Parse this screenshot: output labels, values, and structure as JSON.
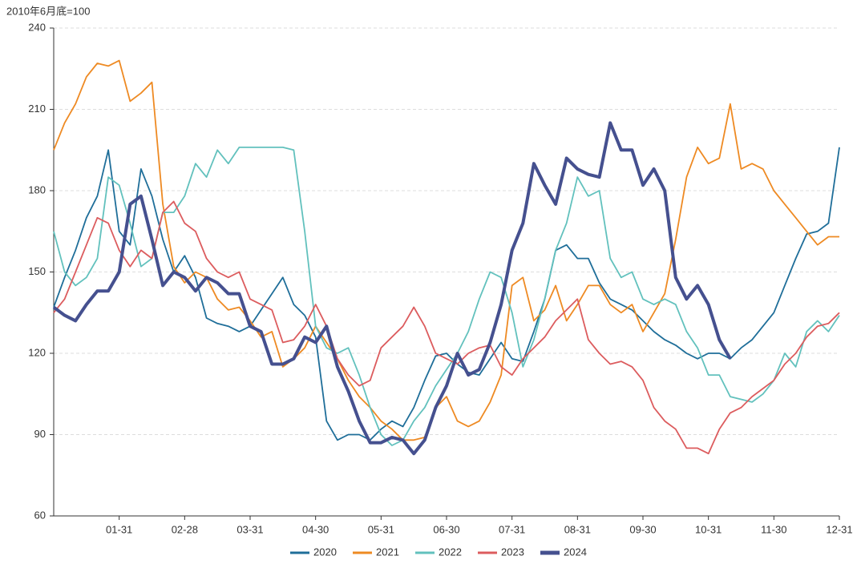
{
  "chart_data": {
    "type": "line",
    "y_label": "2010年6月底=100",
    "categories": [
      null,
      null,
      null,
      null,
      null,
      null,
      "01-31",
      null,
      null,
      null,
      null,
      null,
      "02-28",
      null,
      null,
      null,
      null,
      null,
      "03-31",
      null,
      null,
      null,
      null,
      null,
      "04-30",
      null,
      null,
      null,
      null,
      null,
      "05-31",
      null,
      null,
      null,
      null,
      null,
      "06-30",
      null,
      null,
      null,
      null,
      null,
      "07-31",
      null,
      null,
      null,
      null,
      null,
      "08-31",
      null,
      null,
      null,
      null,
      null,
      "09-30",
      null,
      null,
      null,
      null,
      null,
      "10-31",
      null,
      null,
      null,
      null,
      null,
      "11-30",
      null,
      null,
      null,
      null,
      null,
      "12-31"
    ],
    "ylim": [
      60,
      240
    ],
    "yticks": [
      60,
      90,
      120,
      150,
      180,
      210,
      240
    ],
    "grid": true,
    "legend": "bottom",
    "series": [
      {
        "name": "2020",
        "color": "#1f6e99",
        "values": [
          137,
          148,
          158,
          170,
          178,
          195,
          165,
          160,
          188,
          178,
          162,
          150,
          156,
          148,
          133,
          131,
          130,
          128,
          130,
          136,
          142,
          148,
          138,
          134,
          126,
          95,
          88,
          90,
          90,
          88,
          92,
          95,
          93,
          100,
          110,
          119,
          120,
          116,
          113,
          112,
          118,
          124,
          118,
          117,
          128,
          140,
          158,
          160,
          155,
          155,
          146,
          140,
          138,
          136,
          132,
          128,
          125,
          123,
          120,
          118,
          120,
          120,
          118,
          122,
          125,
          130,
          135,
          145,
          155,
          164,
          165,
          168,
          196
        ]
      },
      {
        "name": "2021",
        "color": "#ee8a23",
        "values": [
          195,
          205,
          212,
          222,
          227,
          226,
          228,
          213,
          216,
          220,
          175,
          152,
          146,
          150,
          148,
          140,
          136,
          137,
          132,
          126,
          128,
          115,
          118,
          122,
          130,
          124,
          118,
          110,
          104,
          100,
          95,
          92,
          88,
          88,
          89,
          100,
          104,
          95,
          93,
          95,
          102,
          112,
          145,
          148,
          132,
          136,
          145,
          132,
          138,
          145,
          145,
          138,
          135,
          138,
          128,
          135,
          142,
          162,
          185,
          196,
          190,
          192,
          212,
          188,
          190,
          188,
          180,
          175,
          170,
          165,
          160,
          163,
          163
        ]
      },
      {
        "name": "2022",
        "color": "#62c1bd",
        "values": [
          165,
          150,
          145,
          148,
          155,
          185,
          182,
          168,
          152,
          155,
          172,
          172,
          178,
          190,
          185,
          195,
          190,
          196,
          196,
          196,
          196,
          196,
          195,
          165,
          130,
          122,
          120,
          122,
          112,
          100,
          90,
          86,
          88,
          95,
          100,
          108,
          114,
          120,
          128,
          140,
          150,
          148,
          135,
          115,
          125,
          140,
          158,
          168,
          185,
          178,
          180,
          155,
          148,
          150,
          140,
          138,
          140,
          138,
          128,
          122,
          112,
          112,
          104,
          103,
          102,
          105,
          110,
          120,
          115,
          128,
          132,
          128,
          134
        ]
      },
      {
        "name": "2023",
        "color": "#dc5c5e",
        "values": [
          135,
          140,
          150,
          160,
          170,
          168,
          158,
          152,
          158,
          155,
          172,
          176,
          168,
          165,
          155,
          150,
          148,
          150,
          140,
          138,
          136,
          124,
          125,
          130,
          138,
          130,
          118,
          112,
          108,
          110,
          122,
          126,
          130,
          137,
          130,
          120,
          118,
          116,
          120,
          122,
          123,
          115,
          112,
          118,
          122,
          126,
          132,
          136,
          140,
          125,
          120,
          116,
          117,
          115,
          110,
          100,
          95,
          92,
          85,
          85,
          83,
          92,
          98,
          100,
          104,
          107,
          110,
          116,
          120,
          126,
          130,
          131,
          135
        ]
      },
      {
        "name": "2024",
        "color": "#45508f",
        "values": [
          137,
          134,
          132,
          138,
          143,
          143,
          150,
          175,
          178,
          162,
          145,
          150,
          148,
          143,
          148,
          146,
          142,
          142,
          130,
          128,
          116,
          116,
          118,
          126,
          124,
          130,
          115,
          106,
          95,
          87,
          87,
          89,
          88,
          83,
          88,
          100,
          108,
          120,
          112,
          114,
          124,
          138,
          158,
          168,
          190,
          182,
          175,
          192,
          188,
          186,
          185,
          205,
          195,
          195,
          182,
          188,
          180,
          148,
          140,
          145,
          138,
          125,
          118,
          null,
          null,
          null,
          null,
          null,
          null,
          null,
          null,
          null,
          null
        ]
      }
    ]
  }
}
